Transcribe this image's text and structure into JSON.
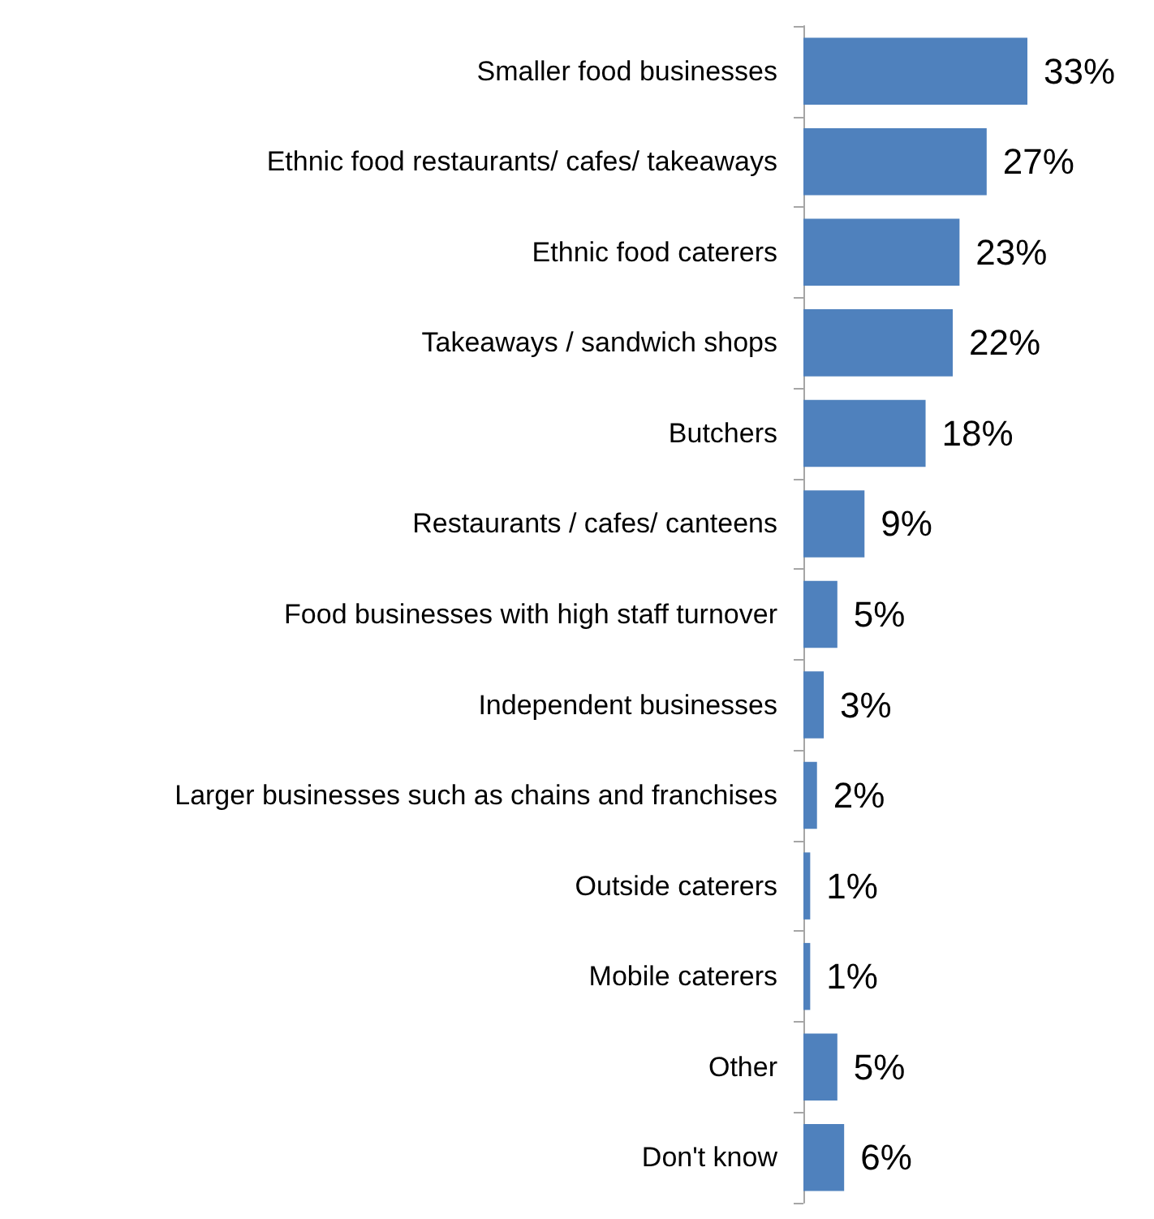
{
  "chart_data": {
    "type": "bar",
    "orientation": "horizontal",
    "categories": [
      "Smaller food businesses",
      "Ethnic food restaurants/ cafes/ takeaways",
      "Ethnic food caterers",
      "Takeaways / sandwich shops",
      "Butchers",
      "Restaurants / cafes/ canteens",
      "Food businesses with high staff turnover",
      "Independent businesses",
      "Larger businesses such as chains and franchises",
      "Outside caterers",
      "Mobile caterers",
      "Other",
      "Don't know"
    ],
    "values": [
      33,
      27,
      23,
      22,
      18,
      9,
      5,
      3,
      2,
      1,
      1,
      5,
      6
    ],
    "value_labels": [
      "33%",
      "27%",
      "23%",
      "22%",
      "18%",
      "9%",
      "5%",
      "3%",
      "2%",
      "1%",
      "1%",
      "5%",
      "6%"
    ],
    "color": "#4f81bd"
  }
}
